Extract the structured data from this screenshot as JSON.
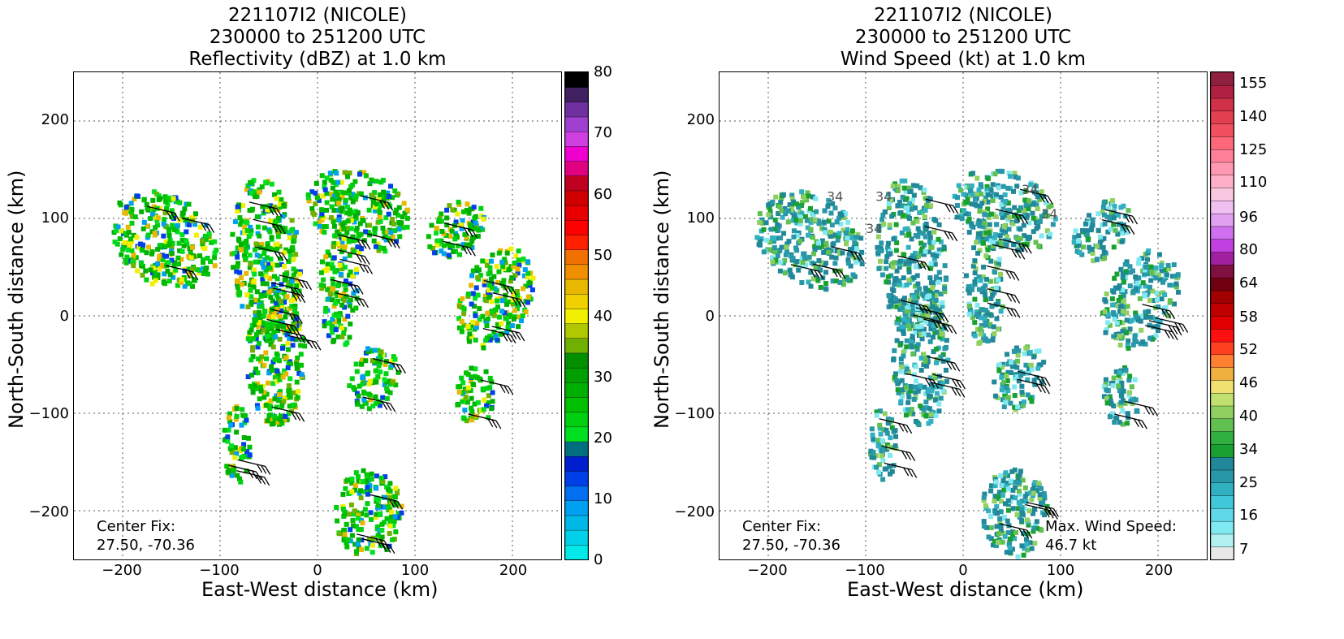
{
  "chart_data": [
    {
      "type": "heatmap",
      "title_lines": [
        "221107I2 (NICOLE)",
        "230000 to 251200 UTC",
        "Reflectivity (dBZ) at 1.0 km"
      ],
      "xlabel": "East-West distance (km)",
      "ylabel": "North-South distance (km)",
      "xlim": [
        -250,
        250
      ],
      "ylim": [
        -250,
        250
      ],
      "xticks": [
        "−200",
        "−100",
        "0",
        "100",
        "200"
      ],
      "yticks": [
        "200",
        "100",
        "0",
        "−100",
        "−200"
      ],
      "grid": true,
      "colorbar": {
        "min": 0,
        "max": 80,
        "ticks": [
          "0",
          "10",
          "20",
          "30",
          "40",
          "50",
          "60",
          "70",
          "80"
        ],
        "colors": [
          "#00e8e8",
          "#00d0e8",
          "#00b8e8",
          "#00a0f0",
          "#0070f0",
          "#0040e8",
          "#0020d0",
          "#007080",
          "#00e020",
          "#00d010",
          "#00c000",
          "#00b000",
          "#00a000",
          "#009000",
          "#70b000",
          "#b0c800",
          "#f0f000",
          "#f0d000",
          "#e8b800",
          "#f09000",
          "#f07000",
          "#ff2000",
          "#ff0000",
          "#e80000",
          "#d00000",
          "#c00020",
          "#e00080",
          "#f000d0",
          "#d040e0",
          "#a040d0",
          "#7030a0",
          "#402060",
          "#000000"
        ]
      },
      "annotations": {
        "center_fix_label": "Center Fix:",
        "center_fix_value": "27.50, -70.36"
      }
    },
    {
      "type": "heatmap",
      "title_lines": [
        "221107I2 (NICOLE)",
        "230000 to 251200 UTC",
        "Wind Speed (kt) at 1.0 km"
      ],
      "xlabel": "East-West distance (km)",
      "ylabel": "North-South distance (km)",
      "xlim": [
        -250,
        250
      ],
      "ylim": [
        -250,
        250
      ],
      "xticks": [
        "−200",
        "−100",
        "0",
        "100",
        "200"
      ],
      "yticks": [
        "200",
        "100",
        "0",
        "−100",
        "−200"
      ],
      "grid": true,
      "colorbar": {
        "ticks": [
          "7",
          "16",
          "25",
          "34",
          "40",
          "46",
          "52",
          "58",
          "64",
          "80",
          "96",
          "110",
          "125",
          "140",
          "155"
        ],
        "colors": [
          "#e8e8e8",
          "#b0f0f0",
          "#80e8f0",
          "#60d8e8",
          "#40c8d8",
          "#30b0c0",
          "#2898a8",
          "#208898",
          "#18a030",
          "#30b040",
          "#60c050",
          "#90d060",
          "#c0e070",
          "#f0e070",
          "#f0b040",
          "#ff8030",
          "#ff4020",
          "#ff1010",
          "#e00000",
          "#c00000",
          "#a00000",
          "#700010",
          "#801040",
          "#a020a0",
          "#c040e0",
          "#d070f0",
          "#e0a0f0",
          "#f0c0f0",
          "#f8c8e0",
          "#ffb0c8",
          "#ff98b0",
          "#ff8098",
          "#ff6878",
          "#f05060",
          "#e04050",
          "#d03048",
          "#b02040",
          "#902040"
        ]
      },
      "annotations": {
        "center_fix_label": "Center Fix:",
        "center_fix_value": "27.50, -70.36",
        "max_wind_label": "Max. Wind Speed:",
        "max_wind_value": "46.7 kt",
        "contour_labels": [
          "34",
          "34",
          "34",
          "34",
          "34"
        ]
      }
    }
  ]
}
